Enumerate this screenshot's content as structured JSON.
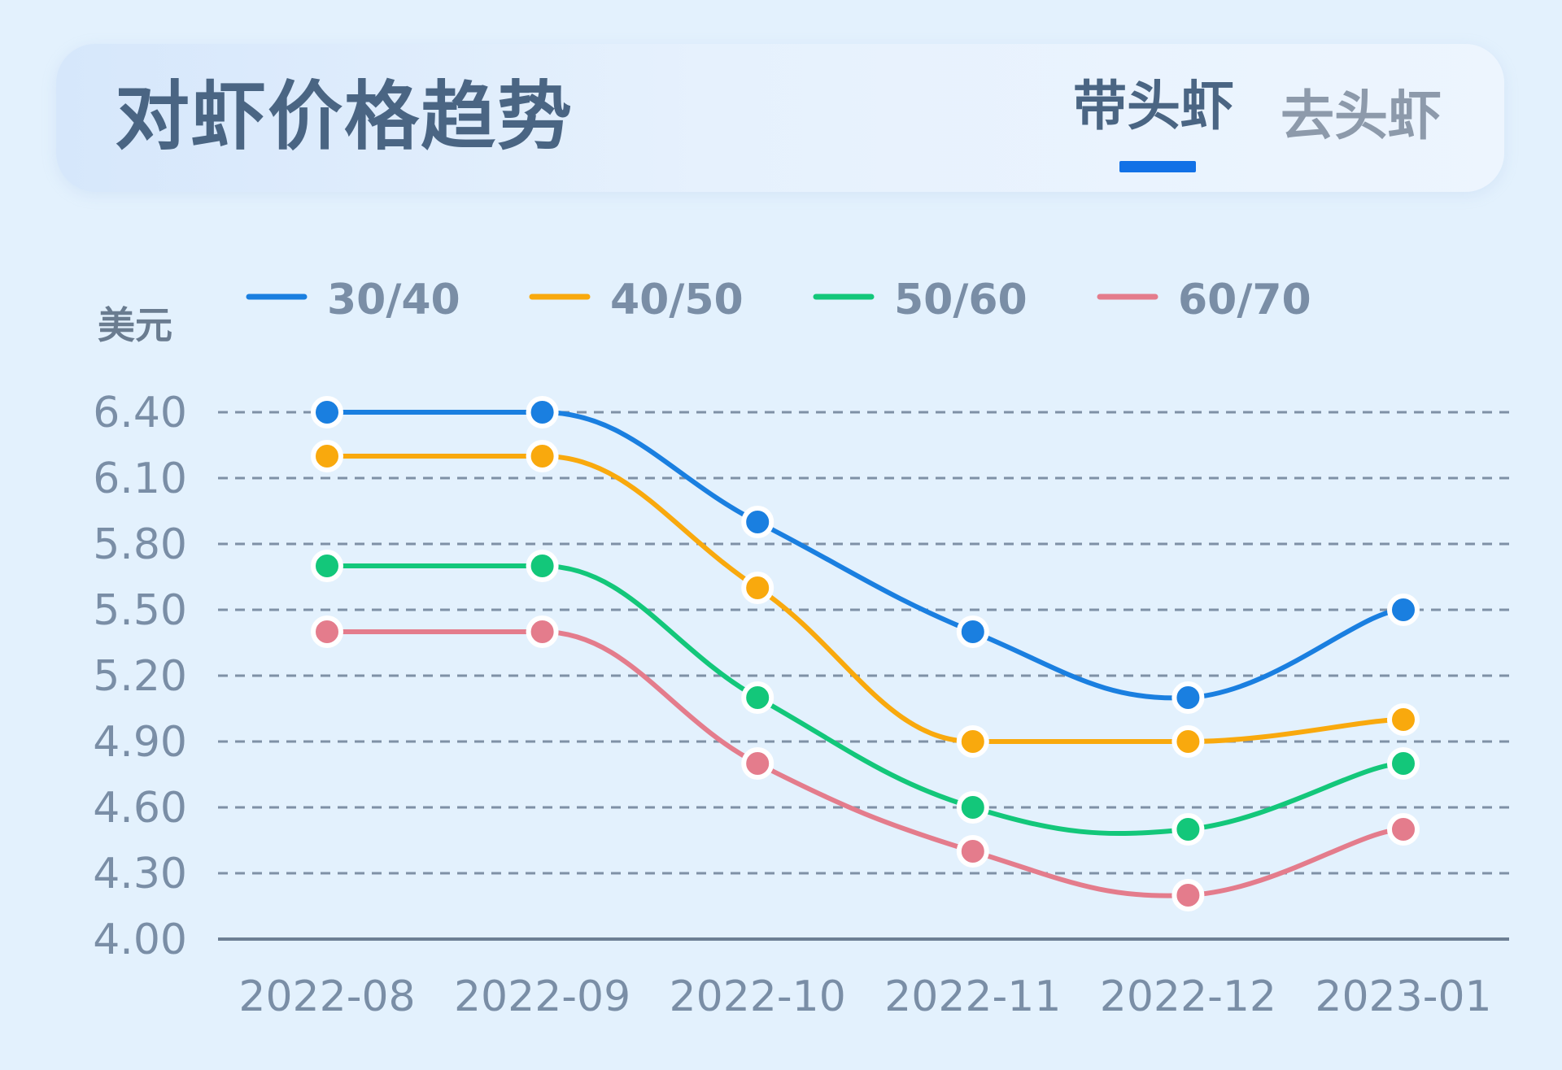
{
  "header": {
    "title": "对虾价格趋势",
    "tabs": [
      {
        "label": "带头虾",
        "active": true
      },
      {
        "label": "去头虾",
        "active": false
      }
    ]
  },
  "chart_data": {
    "type": "line",
    "title": "对虾价格趋势",
    "ylabel": "美元",
    "xlabel": "",
    "categories": [
      "2022-08",
      "2022-09",
      "2022-10",
      "2022-11",
      "2022-12",
      "2023-01"
    ],
    "ylim": [
      4.0,
      6.4
    ],
    "yticks": [
      "4.00",
      "4.30",
      "4.60",
      "4.90",
      "5.20",
      "5.50",
      "5.80",
      "6.10",
      "6.40"
    ],
    "grid": true,
    "legend_position": "top",
    "series": [
      {
        "name": "30/40",
        "color": "#1a7fe0",
        "values": [
          6.4,
          6.4,
          5.9,
          5.4,
          5.1,
          5.5
        ]
      },
      {
        "name": "40/50",
        "color": "#f9a90d",
        "values": [
          6.2,
          6.2,
          5.6,
          4.9,
          4.9,
          5.0
        ]
      },
      {
        "name": "50/60",
        "color": "#13c77a",
        "values": [
          5.7,
          5.7,
          5.1,
          4.6,
          4.5,
          4.8
        ]
      },
      {
        "name": "60/70",
        "color": "#e47c8c",
        "values": [
          5.4,
          5.4,
          4.8,
          4.4,
          4.2,
          4.5
        ]
      }
    ]
  }
}
